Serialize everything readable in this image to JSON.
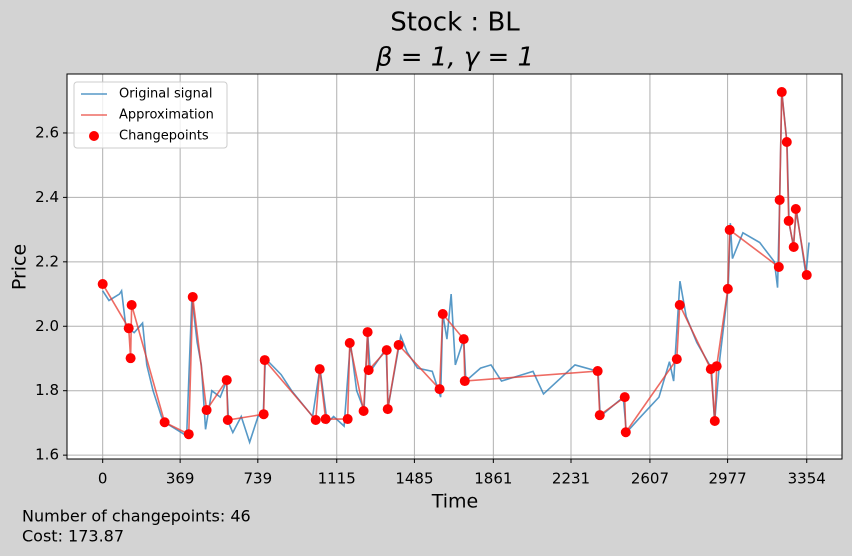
{
  "chart_data": {
    "type": "line",
    "title": "Stock : BL",
    "subtitle": "β = 1, γ = 1",
    "x_label": "Time",
    "y_label": "Price",
    "footer": [
      "Number of changepoints: 46",
      "Cost: 173.87"
    ],
    "xlim": [
      -170,
      3522
    ],
    "ylim": [
      1.588,
      2.783
    ],
    "xticks": [
      0,
      369,
      739,
      1115,
      1485,
      1861,
      2231,
      2607,
      2977,
      3354
    ],
    "yticks": [
      1.6,
      1.8,
      {
        "value": 2,
        "label": "2.0"
      },
      2.2,
      2.4,
      2.6
    ],
    "grid": true,
    "legend": "upper-left",
    "series": [
      {
        "name": "Original signal",
        "color": "#1f77b4",
        "style": "line",
        "x": [
          0,
          30,
          80,
          90,
          110,
          150,
          190,
          210,
          240,
          280,
          300,
          350,
          400,
          425,
          450,
          470,
          490,
          520,
          560,
          590,
          600,
          620,
          660,
          680,
          700,
          740,
          765,
          775,
          850,
          900,
          1000,
          1035,
          1070,
          1100,
          1150,
          1180,
          1210,
          1245,
          1262,
          1275,
          1350,
          1360,
          1420,
          1450,
          1500,
          1570,
          1610,
          1620,
          1640,
          1660,
          1680,
          1720,
          1730,
          1800,
          1850,
          1900,
          2000,
          2050,
          2100,
          2200,
          2250,
          2360,
          2370,
          2480,
          2495,
          2550,
          2650,
          2700,
          2720,
          2750,
          2780,
          2830,
          2900,
          2915,
          2940,
          2980,
          2990,
          3000,
          3050,
          3130,
          3200,
          3215,
          3225,
          3235,
          3260,
          3270,
          3290,
          3305,
          3350,
          3365
        ],
        "values": [
          2.11,
          2.08,
          2.1,
          2.11,
          2.0,
          1.98,
          2.01,
          1.88,
          1.8,
          1.72,
          1.7,
          1.68,
          1.66,
          2.09,
          1.95,
          1.88,
          1.68,
          1.8,
          1.78,
          1.83,
          1.7,
          1.67,
          1.72,
          1.68,
          1.64,
          1.72,
          1.73,
          1.9,
          1.85,
          1.8,
          1.72,
          1.87,
          1.7,
          1.72,
          1.69,
          1.95,
          1.8,
          1.74,
          1.98,
          1.86,
          1.93,
          1.75,
          1.97,
          1.92,
          1.87,
          1.86,
          1.78,
          2.04,
          1.96,
          2.1,
          1.88,
          1.96,
          1.83,
          1.87,
          1.88,
          1.83,
          1.85,
          1.86,
          1.79,
          1.85,
          1.88,
          1.86,
          1.72,
          1.78,
          1.67,
          1.71,
          1.78,
          1.89,
          1.83,
          2.14,
          2.03,
          1.95,
          1.87,
          1.7,
          1.9,
          2.12,
          2.32,
          2.21,
          2.29,
          2.26,
          2.2,
          2.12,
          2.39,
          2.73,
          2.57,
          2.32,
          2.25,
          2.36,
          2.16,
          2.26
        ]
      },
      {
        "name": "Approximation",
        "color": "#e8392f",
        "style": "line",
        "x": [
          0,
          124,
          133,
          138,
          295,
          410,
          429,
          495,
          591,
          596,
          767,
          772,
          1015,
          1034,
          1062,
          1167,
          1177,
          1243,
          1262,
          1267,
          1353,
          1358,
          1410,
          1605,
          1620,
          1720,
          1725,
          2358,
          2368,
          2487,
          2492,
          2735,
          2749,
          2897,
          2916,
          2925,
          2978,
          2987,
          3221,
          3225,
          3235,
          3259,
          3268,
          3292,
          3302,
          3354
        ],
        "values": [
          2.131,
          1.994,
          1.901,
          2.066,
          1.702,
          1.665,
          2.091,
          1.74,
          1.833,
          1.709,
          1.727,
          1.895,
          1.709,
          1.867,
          1.712,
          1.712,
          1.948,
          1.737,
          1.982,
          1.864,
          1.926,
          1.743,
          1.942,
          1.805,
          2.038,
          1.96,
          1.83,
          1.861,
          1.724,
          1.78,
          1.671,
          1.898,
          2.066,
          1.867,
          1.706,
          1.876,
          2.116,
          2.299,
          2.184,
          2.392,
          2.727,
          2.572,
          2.327,
          2.246,
          2.364,
          2.159
        ]
      },
      {
        "name": "Changepoints",
        "color": "#ff0000",
        "style": "markers",
        "x": [
          0,
          124,
          133,
          138,
          295,
          410,
          429,
          495,
          591,
          596,
          767,
          772,
          1015,
          1034,
          1062,
          1167,
          1177,
          1243,
          1262,
          1267,
          1353,
          1358,
          1410,
          1605,
          1620,
          1720,
          1725,
          2358,
          2368,
          2487,
          2492,
          2735,
          2749,
          2897,
          2916,
          2925,
          2978,
          2987,
          3221,
          3225,
          3235,
          3259,
          3268,
          3292,
          3302,
          3354
        ],
        "values": [
          2.131,
          1.994,
          1.901,
          2.066,
          1.702,
          1.665,
          2.091,
          1.74,
          1.833,
          1.709,
          1.727,
          1.895,
          1.709,
          1.867,
          1.712,
          1.712,
          1.948,
          1.737,
          1.982,
          1.864,
          1.926,
          1.743,
          1.942,
          1.805,
          2.038,
          1.96,
          1.83,
          1.861,
          1.724,
          1.78,
          1.671,
          1.898,
          2.066,
          1.867,
          1.706,
          1.876,
          2.116,
          2.299,
          2.184,
          2.392,
          2.727,
          2.572,
          2.327,
          2.246,
          2.364,
          2.159
        ]
      }
    ]
  }
}
